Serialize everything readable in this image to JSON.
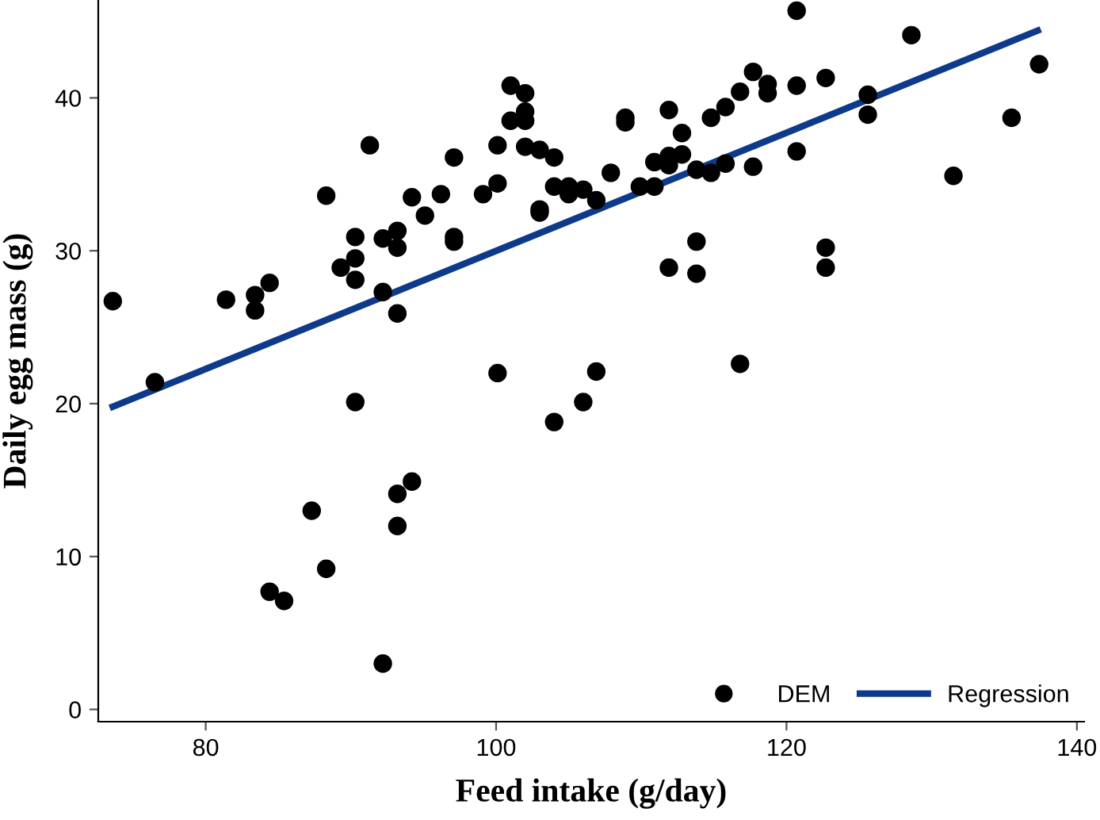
{
  "chart_data": {
    "type": "scatter",
    "xlabel": "Feed intake (g/day)",
    "ylabel": "Daily egg mass (g)",
    "xlim": [
      72.6,
      140.5
    ],
    "ylim": [
      -0.8,
      46.4
    ],
    "xticks": [
      80,
      100,
      120,
      140
    ],
    "yticks": [
      0,
      10,
      20,
      30,
      40
    ],
    "grid": false,
    "legend": "bottom right",
    "marker": "circle",
    "series": [
      {
        "name": "DEM",
        "color": "#000000",
        "x": [
          73.6,
          76.5,
          81.4,
          83.4,
          83.4,
          84.4,
          88.3,
          91.3,
          89.3,
          90.3,
          90.3,
          90.3,
          92.2,
          93.2,
          93.2,
          94.2,
          95.1,
          92.2,
          93.2,
          90.3,
          87.3,
          88.3,
          84.4,
          85.4,
          93.2,
          94.2,
          93.2,
          92.2,
          96.2,
          97.1,
          97.1,
          97.1,
          99.1,
          100.1,
          100.1,
          101.0,
          101.0,
          102.0,
          102.0,
          102.0,
          102.0,
          103.0,
          103.0,
          103.0,
          104.0,
          104.0,
          105.0,
          105.0,
          106.0,
          106.9,
          107.9,
          108.9,
          108.9,
          109.9,
          110.9,
          110.9,
          111.9,
          111.9,
          111.9,
          112.8,
          112.8,
          113.8,
          114.8,
          114.8,
          115.8,
          115.8,
          116.8,
          117.7,
          117.7,
          111.9,
          113.8,
          113.8,
          116.8,
          100.1,
          104.0,
          106.0,
          106.9,
          118.7,
          118.7,
          120.7,
          120.7,
          120.7,
          122.7,
          122.7,
          122.7,
          125.6,
          125.6,
          128.6,
          131.5,
          135.5,
          137.4
        ],
        "values": [
          26.7,
          21.4,
          26.8,
          27.1,
          26.1,
          27.9,
          33.6,
          36.9,
          28.9,
          30.9,
          29.5,
          28.1,
          30.8,
          31.3,
          30.2,
          33.5,
          32.3,
          27.3,
          25.9,
          20.1,
          13.0,
          9.2,
          7.7,
          7.1,
          14.1,
          14.9,
          12.0,
          3.0,
          33.7,
          36.1,
          30.9,
          30.6,
          33.7,
          34.4,
          36.9,
          40.8,
          38.5,
          40.3,
          39.1,
          38.5,
          36.8,
          36.6,
          32.7,
          32.5,
          36.1,
          34.2,
          34.2,
          33.7,
          34.0,
          33.3,
          35.1,
          38.7,
          38.4,
          34.2,
          34.2,
          35.8,
          39.2,
          36.2,
          35.6,
          37.7,
          36.3,
          35.3,
          38.7,
          35.1,
          39.4,
          35.7,
          40.4,
          41.7,
          35.5,
          28.9,
          30.6,
          28.5,
          22.6,
          22.0,
          18.8,
          20.1,
          22.1,
          40.9,
          40.3,
          45.7,
          40.8,
          36.5,
          41.3,
          30.2,
          28.9,
          40.2,
          38.9,
          44.1,
          34.9,
          38.7,
          42.2
        ]
      },
      {
        "name": "Regression",
        "type": "line",
        "color": "#0d3a8a",
        "line_style": "solid",
        "marker": "none",
        "x": [
          73.6,
          137.3
        ],
        "values": [
          19.8,
          44.4
        ]
      }
    ]
  }
}
